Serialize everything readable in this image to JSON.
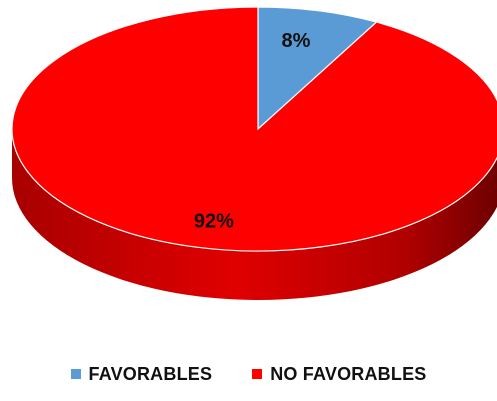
{
  "chart_data": {
    "type": "pie",
    "style": "3d",
    "title": "",
    "categories": [
      "FAVORABLES",
      "NO FAVORABLES"
    ],
    "values": [
      8,
      92
    ],
    "data_labels": [
      "8%",
      "92%"
    ],
    "colors": [
      "#5b9bd5",
      "#ff0000"
    ],
    "legend_position": "bottom",
    "legend": [
      {
        "label": "FAVORABLES",
        "color": "#5b9bd5"
      },
      {
        "label": "NO FAVORABLES",
        "color": "#ff0000"
      }
    ]
  }
}
